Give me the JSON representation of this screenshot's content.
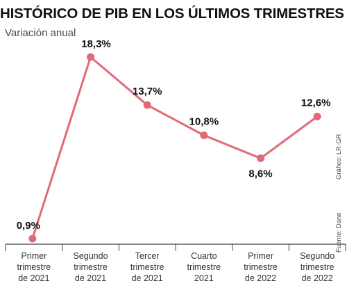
{
  "title": "HISTÓRICO DE PIB EN LOS ÚLTIMOS TRIMESTRES",
  "subtitle": "Variación anual",
  "source": "Fuente: Dane",
  "credit": "Gráfico: LR-GR",
  "colors": {
    "line": "#e06a78",
    "marker": "#e06a78",
    "axis": "#444444"
  },
  "chart_data": {
    "type": "line",
    "categories": [
      [
        "Primer",
        "trimestre",
        "de 2021"
      ],
      [
        "Segundo",
        "trimestre",
        "de 2021"
      ],
      [
        "Tercer",
        "trimestre",
        "de 2021"
      ],
      [
        "Cuarto",
        "trimestre",
        "2021"
      ],
      [
        "Primer",
        "trimestre",
        "de 2022"
      ],
      [
        "Segundo",
        "trimestre",
        "de 2022"
      ]
    ],
    "values": [
      0.9,
      18.3,
      13.7,
      10.8,
      8.6,
      12.6
    ],
    "data_labels": [
      "0,9%",
      "18,3%",
      "13,7%",
      "10,8%",
      "8,6%",
      "12,6%"
    ],
    "title": "HISTÓRICO DE PIB EN LOS ÚLTIMOS TRIMESTRES",
    "subtitle": "Variación anual",
    "grid": false,
    "legend": "none"
  }
}
